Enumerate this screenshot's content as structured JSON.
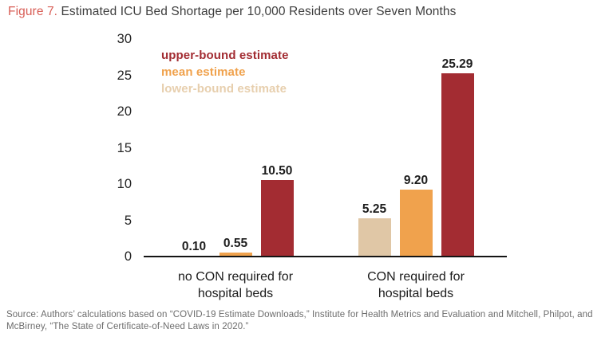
{
  "title": {
    "prefix": "Figure 7.",
    "text": " Estimated ICU Bed Shortage per 10,000 Residents over Seven Months"
  },
  "legend": {
    "position": "inside-top-left",
    "items": [
      {
        "label": "upper-bound estimate",
        "color": "#a22c32"
      },
      {
        "label": "mean estimate",
        "color": "#f0a24d"
      },
      {
        "label": "lower-bound estimate",
        "color": "#e7cfae"
      }
    ]
  },
  "chart_data": {
    "type": "bar",
    "title": "Estimated ICU Bed Shortage per 10,000 Residents over Seven Months",
    "categories": [
      "no CON required for\nhospital beds",
      "CON required for\nhospital beds"
    ],
    "series": [
      {
        "name": "lower-bound estimate",
        "color": "#e0c7a6",
        "values": [
          0.1,
          5.25
        ]
      },
      {
        "name": "mean estimate",
        "color": "#f0a24d",
        "values": [
          0.55,
          9.2
        ]
      },
      {
        "name": "upper-bound estimate",
        "color": "#a32c32",
        "values": [
          10.5,
          25.29
        ]
      }
    ],
    "xlabel": "",
    "ylabel": "",
    "ylim": [
      0,
      30
    ],
    "yticks": [
      0,
      5,
      10,
      15,
      20,
      25,
      30
    ],
    "grid": false,
    "value_label_decimals": 2,
    "legend_position": "text-only upper-left"
  },
  "source": "Source: Authors’ calculations based on “COVID-19 Estimate Downloads,” Institute for Health Metrics and Evaluation and Mitchell, Philpot, and\nMcBirney, “The State of Certificate-of-Need Laws in 2020.”"
}
